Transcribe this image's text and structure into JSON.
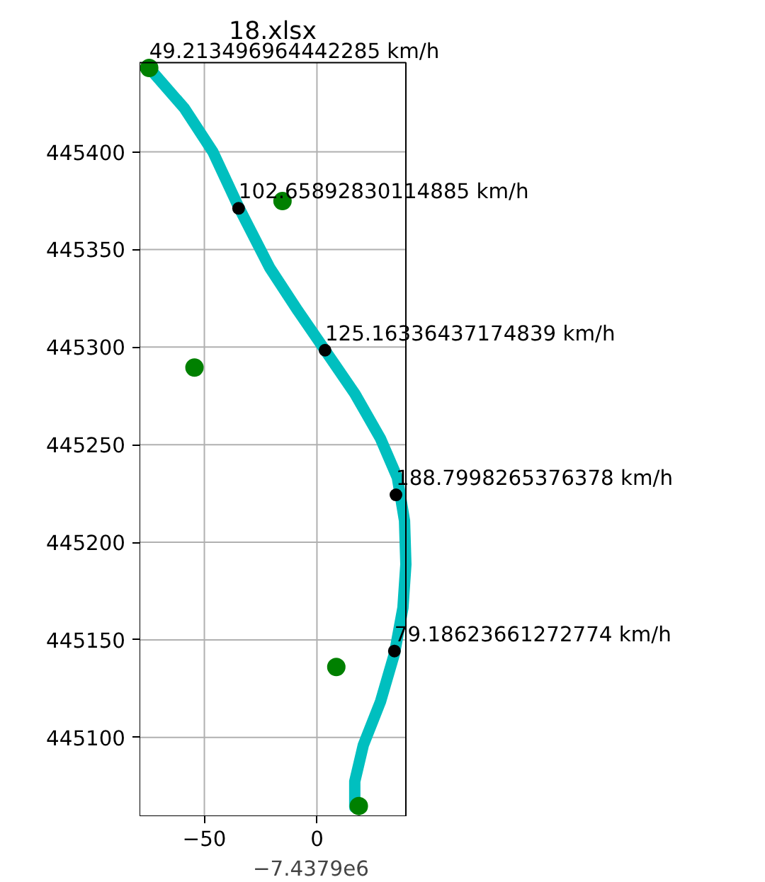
{
  "chart_data": {
    "type": "line",
    "title": "18.xlsx",
    "xlabel": "−7.4379e6",
    "xlim": [
      -78.8,
      39.5
    ],
    "ylim": [
      445059.7,
      445445.7
    ],
    "xticks": [
      {
        "value": -50,
        "label": "−50"
      },
      0
    ],
    "yticks": [
      445100,
      445150,
      445200,
      445250,
      445300,
      445350,
      445400
    ],
    "grid": true,
    "series": [
      {
        "color": "#00bfbf",
        "marker": "none",
        "x": [
          -74.5,
          -58.8,
          -46.2,
          -34.8,
          -21.0,
          -8.4,
          3.6,
          16.8,
          28.2,
          35.7,
          38.9,
          39.5,
          38.2,
          34.4,
          28.2,
          20.6,
          16.8,
          16.8
        ],
        "values": [
          445443,
          445422.2,
          445400,
          445371.8,
          445340.7,
          445318.5,
          445298.4,
          445276.2,
          445253.2,
          445233.2,
          445211,
          445188.7,
          445166.5,
          445142.8,
          445118.3,
          445096.1,
          445077.5,
          445064.2
        ]
      },
      {
        "type": "scatter",
        "color": "#000000",
        "marker": "circle",
        "x": [
          -34.8,
          3.6,
          35.1,
          34.4
        ],
        "values": [
          445371.1,
          445298.4,
          445224.3,
          445144.3
        ]
      },
      {
        "type": "scatter",
        "color": "#008000",
        "marker": "circle",
        "x": [
          -74.5,
          -15.3,
          -54.4,
          8.6,
          18.6
        ],
        "values": [
          445443,
          445374.8,
          445289.5,
          445136.1,
          445064.9
        ]
      }
    ],
    "annotations": [
      {
        "text": "49.213496964442285 km/h",
        "x": -74.5,
        "y": 445443
      },
      {
        "text": "102.65892830114885 km/h",
        "x": -34.8,
        "y": 445371.1
      },
      {
        "text": "125.16336437174839 km/h",
        "x": 3.6,
        "y": 445298.4
      },
      {
        "text": "188.7998265376378 km/h",
        "x": 35.1,
        "y": 445224.3
      },
      {
        "text": "79.18623661272774 km/h",
        "x": 34.4,
        "y": 445144.3
      }
    ]
  }
}
